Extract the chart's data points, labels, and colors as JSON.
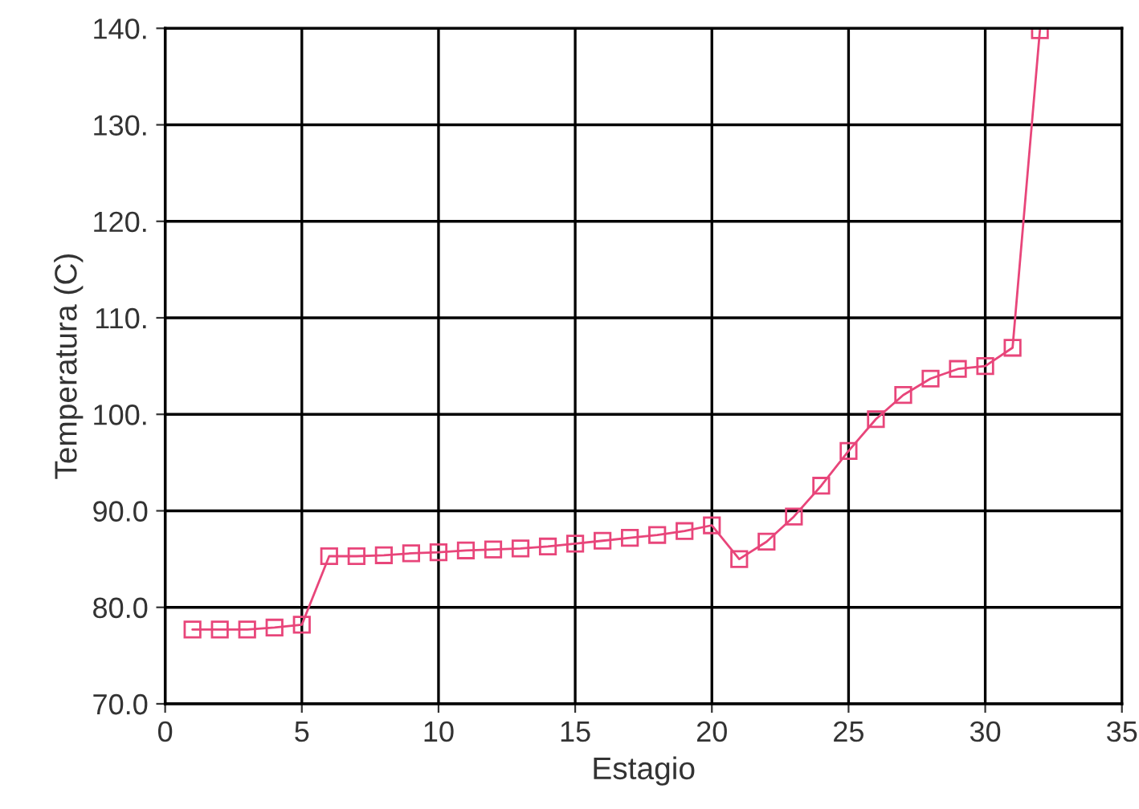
{
  "chart_data": {
    "type": "line",
    "xlabel": "Estagio",
    "ylabel": "Temperatura (C)",
    "x": [
      1,
      2,
      3,
      4,
      5,
      6,
      7,
      8,
      9,
      10,
      11,
      12,
      13,
      14,
      15,
      16,
      17,
      18,
      19,
      20,
      21,
      22,
      23,
      24,
      25,
      26,
      27,
      28,
      29,
      30,
      31,
      32
    ],
    "series": [
      {
        "color": "#e8457a",
        "values": [
          77.7,
          77.7,
          77.7,
          77.9,
          78.2,
          85.3,
          85.3,
          85.4,
          85.6,
          85.7,
          85.9,
          86.0,
          86.1,
          86.3,
          86.6,
          86.9,
          87.2,
          87.5,
          87.9,
          88.5,
          85.0,
          86.8,
          89.4,
          92.6,
          96.2,
          99.5,
          102.0,
          103.7,
          104.7,
          105.0,
          106.9,
          139.8
        ]
      }
    ],
    "xlim": [
      0,
      35
    ],
    "ylim": [
      70,
      140
    ],
    "xticks": [
      0,
      5,
      10,
      15,
      20,
      25,
      30,
      35
    ],
    "yticks": [
      {
        "value": 70,
        "label": "70.0"
      },
      {
        "value": 80,
        "label": "80.0"
      },
      {
        "value": 90,
        "label": "90.0"
      },
      {
        "value": 100,
        "label": "100."
      },
      {
        "value": 110,
        "label": "110."
      },
      {
        "value": 120,
        "label": "120."
      },
      {
        "value": 130,
        "label": "130."
      },
      {
        "value": 140,
        "label": "140."
      }
    ],
    "grid": true,
    "marker": "square",
    "line_style": "solid"
  }
}
